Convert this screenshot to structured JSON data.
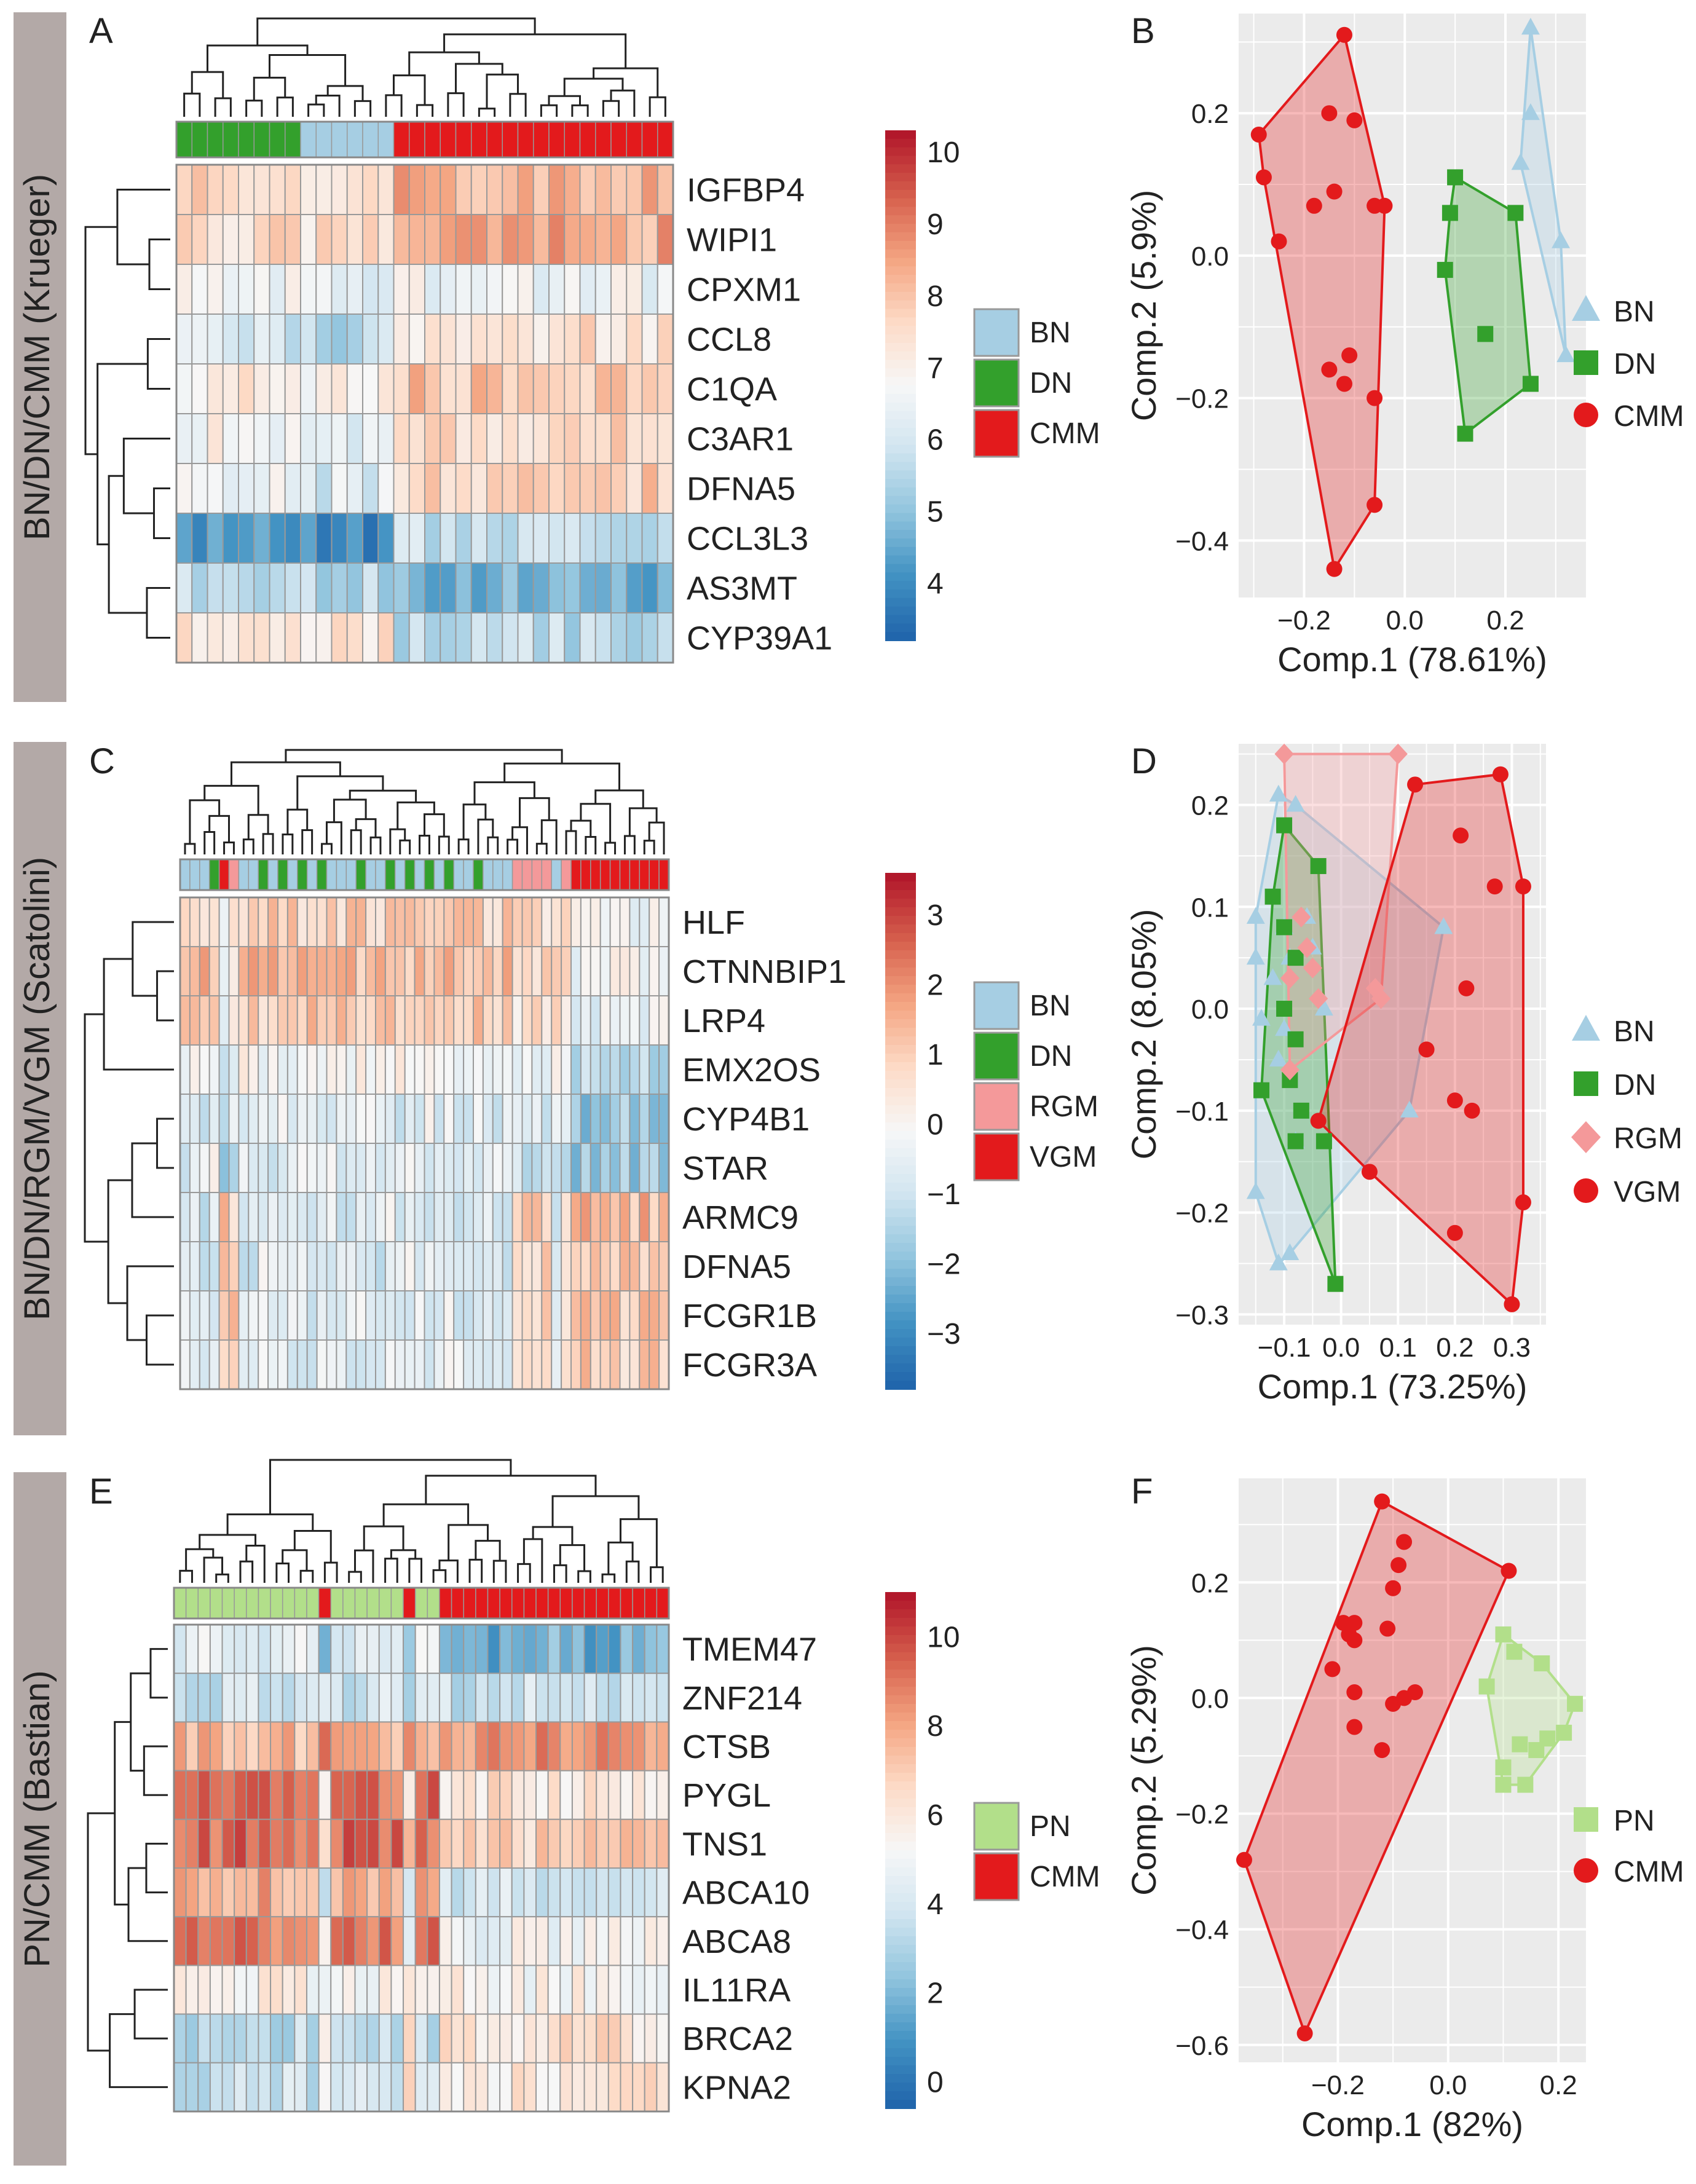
{
  "colors": {
    "BN": "#a6cee3",
    "DN": "#33a02c",
    "CMM": "#e31a1c",
    "RGM": "#f4999a",
    "VGM": "#e31a1c",
    "PN": "#b2df8a",
    "gray_band": "#b3a9a7",
    "panel_bg": "#ebebeb",
    "grid": "#ffffff"
  },
  "legend_labels": {
    "BN": "BN",
    "DN": "DN",
    "CMM": "CMM",
    "RGM": "RGM",
    "VGM": "VGM",
    "PN": "PN"
  },
  "row_bands": [
    {
      "label": "BN/DN/CMM (Krueger)"
    },
    {
      "label": "BN/DN/RGM/VGM (Scatolini)"
    },
    {
      "label": "PN/CMM (Bastian)"
    }
  ],
  "chart_data": [
    {
      "id": "A",
      "type": "heatmap",
      "panel_label": "A",
      "genes": [
        "IGFBP4",
        "WIPI1",
        "CPXM1",
        "CCL8",
        "C1QA",
        "C3AR1",
        "DFNA5",
        "CCL3L3",
        "AS3MT",
        "CYP39A1"
      ],
      "groups": [
        "DN",
        "DN",
        "DN",
        "DN",
        "DN",
        "DN",
        "DN",
        "DN",
        "BN",
        "BN",
        "BN",
        "BN",
        "BN",
        "BN",
        "CMM",
        "CMM",
        "CMM",
        "CMM",
        "CMM",
        "CMM",
        "CMM",
        "CMM",
        "CMM",
        "CMM",
        "CMM",
        "CMM",
        "CMM",
        "CMM",
        "CMM",
        "CMM",
        "CMM",
        "CMM"
      ],
      "group_levels": [
        {
          "IGFBP4": 7.6,
          "WIPI1": 7.6,
          "CPXM1": 6.5,
          "CCL8": 6.0,
          "C1QA": 7.1,
          "C3AR1": 6.8,
          "DFNA5": 6.6,
          "CCL3L3": 4.0,
          "AS3MT": 5.6,
          "CYP39A1": 7.2
        },
        {
          "IGFBP4": 7.2,
          "WIPI1": 7.4,
          "CPXM1": 6.3,
          "CCL8": 5.6,
          "C1QA": 6.8,
          "C3AR1": 6.4,
          "DFNA5": 6.1,
          "CCL3L3": 3.9,
          "AS3MT": 5.4,
          "CYP39A1": 7.3
        },
        {
          "IGFBP4": 8.3,
          "WIPI1": 8.4,
          "CPXM1": 6.6,
          "CCL8": 7.4,
          "C1QA": 8.0,
          "C3AR1": 7.6,
          "DFNA5": 7.8,
          "CCL3L3": 5.7,
          "AS3MT": 4.6,
          "CYP39A1": 5.6
        }
      ],
      "scale": {
        "min": 3.2,
        "max": 10.3,
        "ticks": [
          4,
          5,
          6,
          7,
          8,
          9,
          10
        ]
      },
      "legend": [
        "BN",
        "DN",
        "CMM"
      ]
    },
    {
      "id": "B",
      "type": "scatter",
      "panel_label": "B",
      "xlabel": "Comp.1 (78.61%)",
      "ylabel": "Comp.2 (5.9%)",
      "xlim": [
        -0.33,
        0.36
      ],
      "ylim": [
        -0.48,
        0.34
      ],
      "xticks": [
        -0.2,
        0.0,
        0.2
      ],
      "yticks": [
        0.2,
        0.0,
        -0.2,
        -0.4
      ],
      "xtick_labels": [
        "−0.2",
        "0.0",
        "0.2"
      ],
      "ytick_labels": [
        "0.2",
        "0.0",
        "−0.2",
        "−0.4"
      ],
      "series": [
        {
          "name": "BN",
          "marker": "triangle",
          "points": [
            [
              0.25,
              0.32
            ],
            [
              0.25,
              0.2
            ],
            [
              0.23,
              0.13
            ],
            [
              0.31,
              0.02
            ],
            [
              0.32,
              -0.14
            ]
          ]
        },
        {
          "name": "DN",
          "marker": "square",
          "points": [
            [
              0.1,
              0.11
            ],
            [
              0.09,
              0.06
            ],
            [
              0.08,
              -0.02
            ],
            [
              0.12,
              -0.25
            ],
            [
              0.16,
              -0.11
            ],
            [
              0.22,
              0.06
            ],
            [
              0.25,
              -0.18
            ]
          ]
        },
        {
          "name": "CMM",
          "marker": "circle",
          "points": [
            [
              -0.12,
              0.31
            ],
            [
              -0.29,
              0.17
            ],
            [
              -0.28,
              0.11
            ],
            [
              -0.25,
              0.02
            ],
            [
              -0.18,
              0.07
            ],
            [
              -0.15,
              0.2
            ],
            [
              -0.1,
              0.19
            ],
            [
              -0.14,
              0.09
            ],
            [
              -0.06,
              0.07
            ],
            [
              -0.04,
              0.07
            ],
            [
              -0.15,
              -0.16
            ],
            [
              -0.11,
              -0.14
            ],
            [
              -0.12,
              -0.18
            ],
            [
              -0.06,
              -0.2
            ],
            [
              -0.06,
              -0.35
            ],
            [
              -0.14,
              -0.44
            ]
          ]
        }
      ],
      "legend": [
        "BN",
        "DN",
        "CMM"
      ]
    },
    {
      "id": "C",
      "type": "heatmap",
      "panel_label": "C",
      "genes": [
        "HLF",
        "CTNNBIP1",
        "LRP4",
        "EMX2OS",
        "CYP4B1",
        "STAR",
        "ARMC9",
        "DFNA5",
        "FCGR1B",
        "FCGR3A"
      ],
      "groups": [
        "BN",
        "BN",
        "BN",
        "DN",
        "VGM",
        "RGM",
        "BN",
        "BN",
        "DN",
        "BN",
        "DN",
        "BN",
        "DN",
        "BN",
        "DN",
        "BN",
        "BN",
        "BN",
        "DN",
        "BN",
        "BN",
        "DN",
        "BN",
        "DN",
        "BN",
        "DN",
        "BN",
        "DN",
        "BN",
        "BN",
        "DN",
        "BN",
        "BN",
        "BN",
        "RGM",
        "RGM",
        "RGM",
        "RGM",
        "BN",
        "RGM",
        "VGM",
        "VGM",
        "VGM",
        "VGM",
        "VGM",
        "VGM",
        "VGM",
        "VGM",
        "VGM",
        "VGM"
      ],
      "group_levels": [
        {
          "HLF": 1.0,
          "CTNNBIP1": 1.5,
          "LRP4": 1.1,
          "EMX2OS": -0.1,
          "CYP4B1": -0.7,
          "STAR": -0.6,
          "ARMC9": -0.8,
          "DFNA5": -0.8,
          "FCGR1B": -0.6,
          "FCGR3A": -0.6
        },
        {
          "HLF": 1.0,
          "CTNNBIP1": 1.4,
          "LRP4": 1.0,
          "EMX2OS": 0.0,
          "CYP4B1": -0.4,
          "STAR": -0.4,
          "ARMC9": -0.6,
          "DFNA5": -0.6,
          "FCGR1B": -0.5,
          "FCGR3A": -0.5
        },
        {
          "HLF": 0.6,
          "CTNNBIP1": 0.9,
          "LRP4": 0.5,
          "EMX2OS": -0.5,
          "CYP4B1": -0.9,
          "STAR": -1.0,
          "ARMC9": 1.0,
          "DFNA5": 0.8,
          "FCGR1B": 1.0,
          "FCGR3A": 0.7
        },
        {
          "HLF": -0.3,
          "CTNNBIP1": -0.1,
          "LRP4": -0.4,
          "EMX2OS": -1.4,
          "CYP4B1": -1.8,
          "STAR": -1.9,
          "ARMC9": 1.4,
          "DFNA5": 1.0,
          "FCGR1B": 1.2,
          "FCGR3A": 1.0
        }
      ],
      "scale": {
        "min": -3.8,
        "max": 3.6,
        "ticks": [
          3,
          2,
          1,
          0,
          -1,
          -2,
          -3
        ]
      },
      "tick_labels": [
        "3",
        "2",
        "1",
        "0",
        "−1",
        "−2",
        "−3"
      ],
      "legend": [
        "BN",
        "DN",
        "RGM",
        "VGM"
      ]
    },
    {
      "id": "D",
      "type": "scatter",
      "panel_label": "D",
      "xlabel": "Comp.1 (73.25%)",
      "ylabel": "Comp.2 (8.05%)",
      "xlim": [
        -0.18,
        0.36
      ],
      "ylim": [
        -0.31,
        0.26
      ],
      "xticks": [
        -0.1,
        0.0,
        0.1,
        0.2,
        0.3
      ],
      "yticks": [
        0.2,
        0.1,
        0.0,
        -0.1,
        -0.2,
        -0.3
      ],
      "xtick_labels": [
        "−0.1",
        "0.0",
        "0.1",
        "0.2",
        "0.3"
      ],
      "ytick_labels": [
        "0.2",
        "0.1",
        "0.0",
        "−0.1",
        "−0.2",
        "−0.3"
      ],
      "series": [
        {
          "name": "BN",
          "marker": "triangle",
          "points": [
            [
              -0.11,
              0.21
            ],
            [
              -0.08,
              0.2
            ],
            [
              -0.15,
              0.09
            ],
            [
              -0.15,
              0.05
            ],
            [
              -0.14,
              -0.01
            ],
            [
              -0.15,
              -0.18
            ],
            [
              -0.11,
              -0.25
            ],
            [
              -0.09,
              -0.24
            ],
            [
              -0.1,
              0.08
            ],
            [
              -0.09,
              0.05
            ],
            [
              -0.12,
              0.03
            ],
            [
              -0.1,
              -0.02
            ],
            [
              -0.11,
              -0.05
            ],
            [
              -0.08,
              -0.13
            ],
            [
              0.18,
              0.08
            ],
            [
              -0.06,
              0.09
            ],
            [
              -0.05,
              0.06
            ],
            [
              -0.03,
              0.0
            ],
            [
              0.12,
              -0.1
            ]
          ]
        },
        {
          "name": "DN",
          "marker": "square",
          "points": [
            [
              -0.1,
              0.18
            ],
            [
              -0.04,
              0.14
            ],
            [
              -0.12,
              0.11
            ],
            [
              -0.1,
              0.08
            ],
            [
              -0.08,
              0.05
            ],
            [
              -0.1,
              0.0
            ],
            [
              -0.08,
              -0.03
            ],
            [
              -0.14,
              -0.08
            ],
            [
              -0.09,
              -0.07
            ],
            [
              -0.07,
              -0.1
            ],
            [
              -0.08,
              -0.13
            ],
            [
              -0.03,
              -0.13
            ],
            [
              -0.01,
              -0.27
            ]
          ]
        },
        {
          "name": "RGM",
          "marker": "diamond",
          "points": [
            [
              -0.1,
              0.25
            ],
            [
              0.1,
              0.25
            ],
            [
              -0.07,
              0.09
            ],
            [
              -0.06,
              0.06
            ],
            [
              -0.09,
              0.03
            ],
            [
              -0.05,
              0.04
            ],
            [
              0.06,
              0.02
            ],
            [
              0.07,
              0.01
            ],
            [
              -0.04,
              0.01
            ],
            [
              -0.09,
              -0.06
            ]
          ]
        },
        {
          "name": "VGM",
          "marker": "circle",
          "points": [
            [
              0.13,
              0.22
            ],
            [
              0.28,
              0.23
            ],
            [
              0.21,
              0.17
            ],
            [
              0.27,
              0.12
            ],
            [
              0.32,
              0.12
            ],
            [
              0.22,
              0.02
            ],
            [
              0.15,
              -0.04
            ],
            [
              0.2,
              -0.09
            ],
            [
              0.23,
              -0.1
            ],
            [
              0.05,
              -0.16
            ],
            [
              0.2,
              -0.22
            ],
            [
              0.32,
              -0.19
            ],
            [
              0.3,
              -0.29
            ],
            [
              -0.04,
              -0.11
            ]
          ]
        }
      ],
      "legend": [
        "BN",
        "DN",
        "RGM",
        "VGM"
      ]
    },
    {
      "id": "E",
      "type": "heatmap",
      "panel_label": "E",
      "genes": [
        "TMEM47",
        "ZNF214",
        "CTSB",
        "PYGL",
        "TNS1",
        "ABCA10",
        "ABCA8",
        "IL11RA",
        "BRCA2",
        "KPNA2"
      ],
      "groups": [
        "PN",
        "PN",
        "PN",
        "PN",
        "PN",
        "PN",
        "PN",
        "PN",
        "PN",
        "PN",
        "PN",
        "PN",
        "CMM",
        "PN",
        "PN",
        "PN",
        "PN",
        "PN",
        "PN",
        "CMM",
        "PN",
        "PN",
        "CMM",
        "CMM",
        "CMM",
        "CMM",
        "CMM",
        "CMM",
        "CMM",
        "CMM",
        "CMM",
        "CMM",
        "CMM",
        "CMM",
        "CMM",
        "CMM",
        "CMM",
        "CMM",
        "CMM",
        "CMM",
        "CMM"
      ],
      "group_levels": [
        {
          "TMEM47": 4.6,
          "ZNF214": 3.8,
          "CTSB": 7.6,
          "PYGL": 9.1,
          "TNS1": 9.4,
          "ABCA10": 8.0,
          "ABCA8": 8.9,
          "IL11RA": 5.6,
          "BRCA2": 3.4,
          "KPNA2": 3.6
        },
        {
          "TMEM47": 1.7,
          "ZNF214": 3.6,
          "CTSB": 8.5,
          "PYGL": 6.2,
          "TNS1": 6.8,
          "ABCA10": 4.0,
          "ABCA8": 5.0,
          "IL11RA": 5.4,
          "BRCA2": 6.2,
          "KPNA2": 6.0
        }
      ],
      "scale": {
        "min": -0.6,
        "max": 11.0,
        "ticks": [
          10,
          8,
          6,
          4,
          2,
          0
        ]
      },
      "legend": [
        "PN",
        "CMM"
      ]
    },
    {
      "id": "F",
      "type": "scatter",
      "panel_label": "F",
      "xlabel": "Comp.1 (82%)",
      "ylabel": "Comp.2 (5.29%)",
      "xlim": [
        -0.38,
        0.25
      ],
      "ylim": [
        -0.63,
        0.38
      ],
      "xticks": [
        -0.2,
        0.0,
        0.2
      ],
      "yticks": [
        0.2,
        0.0,
        -0.2,
        -0.4,
        -0.6
      ],
      "xtick_labels": [
        "−0.2",
        "0.0",
        "0.2"
      ],
      "ytick_labels": [
        "0.2",
        "0.0",
        "−0.2",
        "−0.4",
        "−0.6"
      ],
      "series": [
        {
          "name": "PN",
          "marker": "square",
          "points": [
            [
              0.1,
              0.11
            ],
            [
              0.12,
              0.08
            ],
            [
              0.07,
              0.02
            ],
            [
              0.17,
              0.06
            ],
            [
              0.23,
              -0.01
            ],
            [
              0.21,
              -0.06
            ],
            [
              0.18,
              -0.07
            ],
            [
              0.16,
              -0.09
            ],
            [
              0.13,
              -0.08
            ],
            [
              0.1,
              -0.12
            ],
            [
              0.14,
              -0.15
            ],
            [
              0.1,
              -0.15
            ]
          ]
        },
        {
          "name": "CMM",
          "marker": "circle",
          "points": [
            [
              -0.12,
              0.34
            ],
            [
              -0.08,
              0.27
            ],
            [
              -0.09,
              0.23
            ],
            [
              -0.1,
              0.19
            ],
            [
              0.11,
              0.22
            ],
            [
              -0.19,
              0.13
            ],
            [
              -0.17,
              0.13
            ],
            [
              -0.17,
              0.1
            ],
            [
              -0.18,
              0.11
            ],
            [
              -0.11,
              0.12
            ],
            [
              -0.21,
              0.05
            ],
            [
              -0.17,
              0.01
            ],
            [
              -0.1,
              -0.01
            ],
            [
              -0.08,
              0.0
            ],
            [
              -0.06,
              0.01
            ],
            [
              -0.17,
              -0.05
            ],
            [
              -0.12,
              -0.09
            ],
            [
              -0.26,
              -0.58
            ],
            [
              -0.37,
              -0.28
            ]
          ]
        }
      ],
      "legend": [
        "PN",
        "CMM"
      ]
    }
  ]
}
